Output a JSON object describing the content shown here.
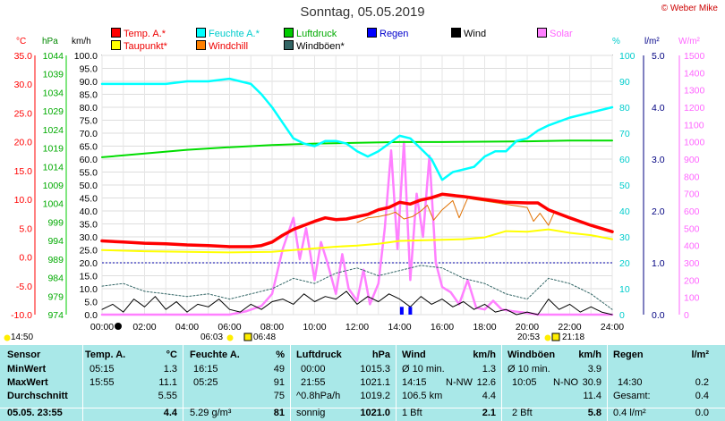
{
  "title": "Sonntag, 05.05.2019",
  "copyright": "© Weber Mike",
  "legend": [
    {
      "label": "Temp. A.*",
      "color": "#ff0000"
    },
    {
      "label": "Feuchte A.*",
      "color": "#00ffff"
    },
    {
      "label": "Luftdruck",
      "color": "#00cc00"
    },
    {
      "label": "Regen",
      "color": "#0000ff"
    },
    {
      "label": "Wind",
      "color": "#000000"
    },
    {
      "label": "Solar",
      "color": "#ff80ff"
    },
    {
      "label": "Taupunkt*",
      "color": "#ffff00"
    },
    {
      "label": "Windchill",
      "color": "#ff8000"
    },
    {
      "label": "Windböen*",
      "color": "#336666"
    }
  ],
  "units": {
    "temp": "°C",
    "pressure": "hPa",
    "wind": "km/h",
    "humidity": "%",
    "rain": "l/m²",
    "solar": "W/m²"
  },
  "chart_data": {
    "type": "line",
    "x_ticks": [
      "00:00",
      "02:00",
      "04:00",
      "06:00",
      "08:00",
      "10:00",
      "12:00",
      "14:00",
      "16:00",
      "18:00",
      "20:00",
      "22:00",
      "24:00"
    ],
    "axes": {
      "temp": {
        "label": "°C",
        "ticks": [
          "35.0",
          "30.0",
          "25.0",
          "20.0",
          "15.0",
          "10.0",
          "5.0",
          "0.0",
          "-5.0",
          "-10.0"
        ],
        "range": [
          -10,
          35
        ],
        "color": "#ff0000"
      },
      "pressure": {
        "label": "hPa",
        "ticks": [
          "1044",
          "1039",
          "1034",
          "1029",
          "1024",
          "1019",
          "1014",
          "1009",
          "1004",
          "999",
          "994",
          "989",
          "984",
          "979",
          "974"
        ],
        "range": [
          974,
          1044
        ],
        "color": "#00aa00"
      },
      "wind": {
        "label": "km/h",
        "ticks": [
          "100.0",
          "95.0",
          "90.0",
          "85.0",
          "80.0",
          "75.0",
          "70.0",
          "65.0",
          "60.0",
          "55.0",
          "50.0",
          "45.0",
          "40.0",
          "35.0",
          "30.0",
          "25.0",
          "20.0",
          "15.0",
          "10.0",
          "5.0",
          "0.0"
        ],
        "range": [
          0,
          100
        ],
        "color": "#000000"
      },
      "humidity": {
        "label": "%",
        "ticks": [
          "100",
          "90",
          "80",
          "70",
          "60",
          "50",
          "40",
          "30",
          "20",
          "10",
          "0"
        ],
        "range": [
          0,
          100
        ],
        "color": "#00cccc"
      },
      "rain": {
        "label": "l/m²",
        "ticks": [
          "5.0",
          "4.0",
          "3.0",
          "2.0",
          "1.0",
          "0.0"
        ],
        "range": [
          0,
          5
        ],
        "color": "#000080"
      },
      "solar": {
        "label": "W/m²",
        "ticks": [
          "1500",
          "1400",
          "1300",
          "1200",
          "1100",
          "1000",
          "900",
          "800",
          "700",
          "600",
          "500",
          "400",
          "300",
          "200",
          "100",
          "0"
        ],
        "range": [
          0,
          1500
        ],
        "color": "#ff66ff"
      }
    },
    "series": [
      {
        "name": "Temp. A.*",
        "axis": "temp",
        "color": "#ff0000",
        "width": 3.5,
        "x": [
          0,
          1,
          2,
          3,
          4,
          5,
          6,
          7,
          7.5,
          8,
          8.5,
          9,
          9.5,
          10,
          10.5,
          11,
          11.5,
          12,
          12.5,
          13,
          13.5,
          14,
          14.5,
          15,
          15.5,
          16,
          17,
          18,
          19,
          20,
          20.5,
          21,
          22,
          23,
          24
        ],
        "y": [
          2.8,
          2.6,
          2.4,
          2.3,
          2.1,
          2.0,
          1.8,
          1.8,
          2.0,
          2.6,
          3.8,
          4.8,
          5.5,
          6.2,
          6.8,
          6.5,
          6.6,
          7.0,
          7.4,
          8.2,
          8.6,
          9.5,
          9.2,
          9.9,
          10.3,
          10.9,
          10.5,
          10.0,
          9.5,
          9.4,
          9.4,
          8.2,
          6.8,
          5.5,
          4.4
        ]
      },
      {
        "name": "Feuchte A.*",
        "axis": "humidity",
        "color": "#00ffff",
        "width": 2.5,
        "x": [
          0,
          1,
          2,
          3,
          4,
          5,
          6,
          6.5,
          7,
          7.5,
          8,
          8.5,
          9,
          9.5,
          10,
          10.5,
          11,
          11.5,
          12,
          12.5,
          13,
          13.5,
          14,
          14.5,
          15,
          15.5,
          16,
          16.5,
          17,
          17.5,
          18,
          18.5,
          19,
          19.5,
          20,
          20.5,
          21,
          22,
          23,
          24
        ],
        "y": [
          89,
          89,
          89,
          89,
          90,
          90,
          91,
          90,
          89,
          85,
          80,
          74,
          68,
          66,
          65,
          67,
          67,
          66,
          63,
          61,
          63,
          66,
          69,
          68,
          64,
          60,
          52,
          55,
          56,
          57,
          61,
          63,
          63,
          67,
          68,
          71,
          73,
          76,
          78,
          80
        ]
      },
      {
        "name": "Luftdruck",
        "axis": "pressure",
        "color": "#00dd00",
        "width": 2,
        "x": [
          0,
          2,
          4,
          6,
          8,
          10,
          12,
          14,
          16,
          18,
          20,
          22,
          24
        ],
        "y": [
          1016.5,
          1017.5,
          1018.5,
          1019.2,
          1019.8,
          1020.2,
          1020.4,
          1020.6,
          1020.6,
          1020.7,
          1020.8,
          1021.0,
          1021.0
        ]
      },
      {
        "name": "Taupunkt*",
        "axis": "temp",
        "color": "#ffff00",
        "width": 2,
        "x": [
          0,
          2,
          4,
          6,
          8,
          9,
          10,
          11,
          12,
          13,
          14,
          15,
          16,
          17,
          18,
          19,
          20,
          21,
          22,
          23,
          24
        ],
        "y": [
          1.2,
          1.0,
          0.9,
          0.8,
          0.9,
          1.2,
          1.5,
          1.8,
          2.0,
          2.3,
          2.8,
          2.9,
          3.0,
          3.1,
          3.4,
          4.5,
          4.4,
          4.8,
          4.2,
          3.8,
          3.1
        ]
      },
      {
        "name": "Windchill",
        "axis": "temp",
        "color": "#e07000",
        "width": 1,
        "x": [
          12,
          12.5,
          13,
          13.5,
          13.8,
          14.2,
          14.6,
          15,
          15.3,
          15.6,
          16,
          16.5,
          16.8,
          17.2,
          17.5,
          20,
          20.3,
          20.6,
          21,
          21.3
        ],
        "y": [
          6.0,
          6.8,
          7.0,
          7.4,
          7.8,
          6.6,
          7.0,
          8.0,
          9.0,
          6.4,
          8.2,
          9.8,
          6.8,
          10.2,
          10.0,
          8.6,
          6.2,
          7.6,
          5.5,
          8.0
        ]
      },
      {
        "name": "Windböen*",
        "axis": "wind",
        "color": "#336666",
        "width": 1,
        "dash": "2,2",
        "x": [
          0,
          1,
          2,
          3,
          4,
          5,
          6,
          7,
          8,
          9,
          10,
          11,
          12,
          13,
          14,
          15,
          16,
          17,
          18,
          19,
          20,
          21,
          22,
          23,
          24
        ],
        "y": [
          11,
          12,
          9,
          8,
          7,
          8,
          6,
          8,
          10,
          14,
          12,
          16,
          18,
          15,
          17,
          19,
          18,
          14,
          12,
          8,
          6,
          14,
          12,
          8,
          2
        ]
      },
      {
        "name": "Wind",
        "axis": "wind",
        "color": "#000000",
        "width": 1,
        "x": [
          0,
          0.5,
          1,
          1.5,
          2,
          2.5,
          3,
          3.5,
          4,
          4.5,
          5,
          5.5,
          6,
          6.5,
          7,
          7.5,
          8,
          8.5,
          9,
          9.5,
          10,
          10.5,
          11,
          11.5,
          12,
          12.5,
          13,
          13.5,
          14,
          14.5,
          15,
          15.5,
          16,
          16.5,
          17,
          17.5,
          18,
          18.5,
          19,
          19.5,
          20,
          20.5,
          21,
          21.5,
          22,
          22.5,
          23,
          23.5,
          24
        ],
        "y": [
          2,
          4,
          1,
          6,
          3,
          7,
          2,
          5,
          1,
          4,
          3,
          6,
          2,
          1,
          4,
          2,
          5,
          6,
          4,
          8,
          5,
          7,
          6,
          9,
          4,
          7,
          5,
          8,
          6,
          3,
          7,
          4,
          6,
          3,
          5,
          2,
          4,
          1,
          2,
          0,
          1,
          0,
          6,
          2,
          4,
          1,
          3,
          1,
          0
        ]
      },
      {
        "name": "Solar",
        "axis": "solar",
        "color": "#ff80ff",
        "width": 2.5,
        "x": [
          0,
          6,
          6.8,
          7.5,
          8,
          8.5,
          9,
          9.3,
          9.6,
          10,
          10.3,
          10.6,
          11,
          11.3,
          11.6,
          12,
          12.3,
          12.6,
          13,
          13.3,
          13.6,
          13.9,
          14.2,
          14.5,
          14.8,
          15.1,
          15.4,
          15.7,
          16,
          16.4,
          16.8,
          17.2,
          17.6,
          18,
          18.4,
          18.8,
          19.3,
          20,
          20.5,
          24
        ],
        "y": [
          0,
          0,
          20,
          50,
          120,
          380,
          560,
          320,
          500,
          200,
          420,
          300,
          120,
          350,
          150,
          80,
          260,
          60,
          180,
          500,
          950,
          380,
          1000,
          200,
          700,
          450,
          920,
          300,
          160,
          130,
          60,
          200,
          40,
          30,
          80,
          30,
          20,
          10,
          0,
          0
        ]
      }
    ],
    "rain": {
      "name": "Regen",
      "color": "#0000ff",
      "x": [
        14.1,
        14.5
      ],
      "y": [
        0.15,
        0.15
      ],
      "baseline": 1.0,
      "baseline_color": "#0000aa"
    }
  },
  "markers": {
    "left_time": "14:50",
    "sunrise": "06:03",
    "moonset": "06:48",
    "sunset": "20:53",
    "moonrise": "21:18"
  },
  "stats": {
    "row_labels": [
      "Sensor",
      "MinWert",
      "MaxWert",
      "Durchschnitt",
      "05.05. 23:55"
    ],
    "temp": {
      "head": "Temp. A.",
      "unit": "°C",
      "rows": [
        [
          "05:15",
          "1.3"
        ],
        [
          "15:55",
          "11.1"
        ],
        [
          "",
          "5.55"
        ],
        [
          "",
          "4.4"
        ]
      ]
    },
    "humid": {
      "head": "Feuchte A.",
      "unit": "%",
      "rows": [
        [
          "16:15",
          "49"
        ],
        [
          "05:25",
          "91"
        ],
        [
          "",
          "75"
        ],
        [
          "5.29 g/m³",
          "81"
        ]
      ]
    },
    "press": {
      "head": "Luftdruck",
      "unit": "hPa",
      "rows": [
        [
          "00:00",
          "1015.3"
        ],
        [
          "21:55",
          "1021.1"
        ],
        [
          "^0.8hPa/h",
          "1019.2"
        ],
        [
          "sonnig",
          "1021.0"
        ]
      ]
    },
    "wind": {
      "head": "Wind",
      "unit": "km/h",
      "rows": [
        [
          "Ø 10 min.",
          "",
          "1.3"
        ],
        [
          "14:15",
          "N-NW",
          "12.6"
        ],
        [
          "106.5 km",
          "",
          "4.4"
        ],
        [
          "1 Bft",
          "",
          "2.1"
        ]
      ]
    },
    "gust": {
      "head": "Windböen",
      "unit": "km/h",
      "rows": [
        [
          "Ø 10 min.",
          "",
          "3.9"
        ],
        [
          "10:05",
          "N-NO",
          "30.9"
        ],
        [
          "",
          "",
          "11.4"
        ],
        [
          "2 Bft",
          "",
          "5.8"
        ]
      ]
    },
    "rain": {
      "head": "Regen",
      "unit": "l/m²",
      "rows": [
        [
          "",
          ""
        ],
        [
          "14:30",
          "0.2"
        ],
        [
          "Gesamt:",
          "0.4"
        ],
        [
          "0.4 l/m²",
          "0.0"
        ]
      ]
    }
  }
}
